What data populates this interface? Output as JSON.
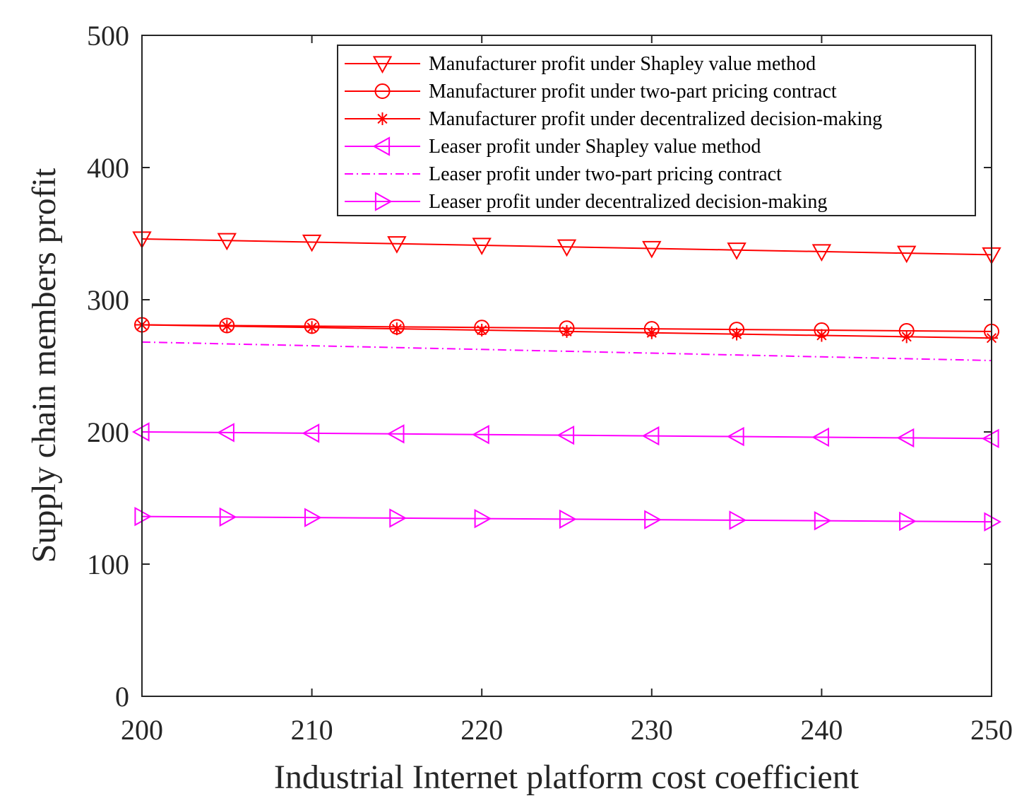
{
  "chart_data": {
    "type": "line",
    "title": "",
    "xlabel": "Industrial Internet platform cost coefficient",
    "ylabel": "Supply chain members profit",
    "xlim": [
      200,
      250
    ],
    "ylim": [
      0,
      500
    ],
    "xticks": [
      200,
      210,
      220,
      230,
      240,
      250
    ],
    "xtick_labels": [
      "200",
      "210",
      "220",
      "230",
      "240",
      "250"
    ],
    "yticks": [
      0,
      100,
      200,
      300,
      400,
      500
    ],
    "ytick_labels": [
      "0",
      "100",
      "200",
      "300",
      "400",
      "500"
    ],
    "grid": false,
    "legend_position": "top-right",
    "x": [
      200,
      205,
      210,
      215,
      220,
      225,
      230,
      235,
      240,
      245,
      250
    ],
    "series": [
      {
        "name": "Manufacturer profit under Shapley value method",
        "color": "#ff0000",
        "marker": "triangle-down",
        "line_style": "solid",
        "values": [
          346,
          344.8,
          343.6,
          342.4,
          341.2,
          340,
          338.8,
          337.6,
          336.4,
          335.2,
          334
        ]
      },
      {
        "name": "Manufacturer profit under two-part pricing contract",
        "color": "#ff0000",
        "marker": "circle",
        "line_style": "solid",
        "values": [
          281,
          280.5,
          280,
          279.5,
          279,
          278.5,
          278,
          277.5,
          277,
          276.5,
          276
        ]
      },
      {
        "name": "Manufacturer profit under decentralized decision-making",
        "color": "#ff0000",
        "marker": "asterisk",
        "line_style": "solid",
        "values": [
          281,
          280,
          279,
          278,
          277,
          276,
          275,
          274,
          273,
          272,
          271
        ]
      },
      {
        "name": "Leaser profit under Shapley value method",
        "color": "#ff00ff",
        "marker": "triangle-left",
        "line_style": "solid",
        "values": [
          200,
          199.5,
          199,
          198.5,
          198,
          197.5,
          197,
          196.5,
          196,
          195.5,
          195
        ]
      },
      {
        "name": "Leaser profit under two-part pricing contract",
        "color": "#ff00ff",
        "marker": "none",
        "line_style": "dash-dot",
        "values": [
          268,
          266.6,
          265.2,
          263.8,
          262.4,
          261,
          259.6,
          258.2,
          256.8,
          255.4,
          254
        ]
      },
      {
        "name": "Leaser profit under decentralized decision-making",
        "color": "#ff00ff",
        "marker": "triangle-right",
        "line_style": "solid",
        "values": [
          136,
          135.6,
          135.2,
          134.8,
          134.4,
          134,
          133.6,
          133.2,
          132.8,
          132.4,
          132
        ]
      }
    ]
  }
}
